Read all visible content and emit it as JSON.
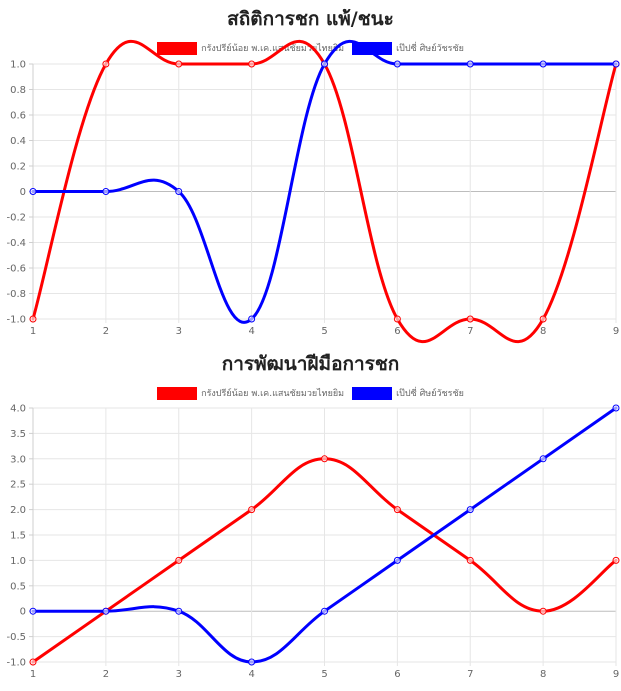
{
  "chart_data": [
    {
      "type": "line",
      "title": "สถิติการชก แพ้/ชนะ",
      "x": [
        1,
        2,
        3,
        4,
        5,
        6,
        7,
        8,
        9
      ],
      "x_tick_labels": [
        "1",
        "2",
        "3",
        "4",
        "5",
        "6",
        "7",
        "8",
        "9"
      ],
      "ylim": [
        -1.0,
        1.0
      ],
      "y_tick_labels": [
        "1.0",
        "0.8",
        "0.6",
        "0.4",
        "0.2",
        "0",
        "-0.2",
        "-0.4",
        "-0.6",
        "-0.8",
        "-1.0"
      ],
      "y_ticks": [
        1.0,
        0.8,
        0.6,
        0.4,
        0.2,
        0,
        -0.2,
        -0.4,
        -0.6,
        -0.8,
        -1.0
      ],
      "grid": true,
      "legend_position": "top",
      "series": [
        {
          "name": "กรังปรีย์น้อย พ.เค.แสนชัยมวยไทยยิม",
          "color": "#ff0000",
          "values": [
            -1,
            1,
            1,
            1,
            1,
            -1,
            -1,
            -1,
            1
          ]
        },
        {
          "name": "เป๊ปซี่ ศิษย์วัชรชัย",
          "color": "#0000ff",
          "values": [
            0,
            0,
            0,
            -1,
            1,
            1,
            1,
            1,
            1
          ]
        }
      ]
    },
    {
      "type": "line",
      "title": "การพัฒนาฝีมือการชก",
      "x": [
        1,
        2,
        3,
        4,
        5,
        6,
        7,
        8,
        9
      ],
      "x_tick_labels": [
        "1",
        "2",
        "3",
        "4",
        "5",
        "6",
        "7",
        "8",
        "9"
      ],
      "ylim": [
        -1.0,
        4.0
      ],
      "y_tick_labels": [
        "4.0",
        "3.5",
        "3.0",
        "2.5",
        "2.0",
        "1.5",
        "1.0",
        "0.5",
        "0",
        "-0.5",
        "-1.0"
      ],
      "y_ticks": [
        4.0,
        3.5,
        3.0,
        2.5,
        2.0,
        1.5,
        1.0,
        0.5,
        0,
        -0.5,
        -1.0
      ],
      "grid": true,
      "legend_position": "top",
      "series": [
        {
          "name": "กรังปรีย์น้อย พ.เค.แสนชัยมวยไทยยิม",
          "color": "#ff0000",
          "values": [
            -1,
            0,
            1,
            2,
            3,
            2,
            1,
            0,
            1
          ]
        },
        {
          "name": "เป๊ปซี่ ศิษย์วัชรชัย",
          "color": "#0000ff",
          "values": [
            0,
            0,
            0,
            -1,
            0,
            1,
            2,
            3,
            4
          ]
        }
      ]
    }
  ]
}
